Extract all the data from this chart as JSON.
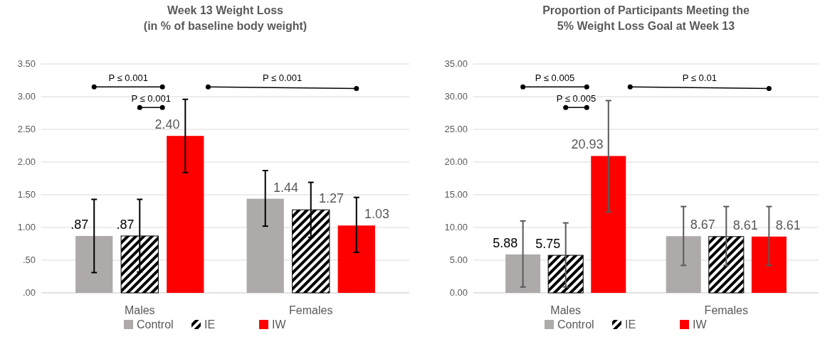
{
  "chart_data": [
    {
      "type": "bar",
      "title": "Week 13 Weight Loss\n(in % of baseline body weight)",
      "categories": [
        "Males",
        "Females"
      ],
      "series": [
        {
          "name": "Control",
          "color": "#aeaaaa",
          "values": [
            0.87,
            1.44
          ],
          "value_labels": [
            ".87",
            "1.44"
          ],
          "errors": [
            [
              0.31,
              1.43
            ],
            [
              1.02,
              1.87
            ]
          ]
        },
        {
          "name": "IE",
          "color": "#000000",
          "values": [
            0.87,
            1.27
          ],
          "value_labels": [
            ".87",
            "1.27"
          ],
          "errors": [
            [
              0.32,
              1.43
            ],
            [
              0.85,
              1.69
            ]
          ]
        },
        {
          "name": "IW",
          "color": "#ff0000",
          "values": [
            2.4,
            1.03
          ],
          "value_labels": [
            "2.40",
            "1.03"
          ],
          "errors": [
            [
              1.84,
              2.96
            ],
            [
              0.62,
              1.46
            ]
          ]
        }
      ],
      "ylim": [
        0,
        3.5
      ],
      "yticks": [
        {
          "value": 0,
          "label": ".00"
        },
        {
          "value": 0.5,
          "label": ".50"
        },
        {
          "value": 1,
          "label": "1.00"
        },
        {
          "value": 1.5,
          "label": "1.50"
        },
        {
          "value": 2,
          "label": "2.00"
        },
        {
          "value": 2.5,
          "label": "2.50"
        },
        {
          "value": 3,
          "label": "3.00"
        },
        {
          "value": 3.5,
          "label": "3.50"
        }
      ],
      "grid": "y",
      "legend": "bottom",
      "annotations": [
        "P ≤ 0.001",
        "P ≤ 0.001",
        "P ≤ 0.001"
      ]
    },
    {
      "type": "bar",
      "title": "Proportion of Participants Meeting the\n5% Weight Loss Goal at Week 13",
      "categories": [
        "Males",
        "Females"
      ],
      "series": [
        {
          "name": "Control",
          "color": "#aeaaaa",
          "values": [
            5.88,
            8.67
          ],
          "value_labels": [
            "5.88",
            "8.67"
          ],
          "errors": [
            [
              0.9,
              11.0
            ],
            [
              4.2,
              13.2
            ]
          ]
        },
        {
          "name": "IE",
          "color": "#000000",
          "values": [
            5.75,
            8.61
          ],
          "value_labels": [
            "5.75",
            "8.61"
          ],
          "errors": [
            [
              0.9,
              10.7
            ],
            [
              4.2,
              13.2
            ]
          ]
        },
        {
          "name": "IW",
          "color": "#ff0000",
          "values": [
            20.93,
            8.61
          ],
          "value_labels": [
            "20.93",
            "8.61"
          ],
          "errors": [
            [
              12.4,
              29.4
            ],
            [
              4.2,
              13.2
            ]
          ]
        }
      ],
      "ylim": [
        0,
        35
      ],
      "yticks": [
        {
          "value": 0,
          "label": "0.00"
        },
        {
          "value": 5,
          "label": "5.00"
        },
        {
          "value": 10,
          "label": "10.00"
        },
        {
          "value": 15,
          "label": "15.00"
        },
        {
          "value": 20,
          "label": "20.00"
        },
        {
          "value": 25,
          "label": "25.00"
        },
        {
          "value": 30,
          "label": "30.00"
        },
        {
          "value": 35,
          "label": "35.00"
        }
      ],
      "grid": "y",
      "legend": "bottom",
      "annotations": [
        "P ≤ 0.005",
        "P ≤ 0.005",
        "P ≤ 0.01"
      ]
    }
  ]
}
